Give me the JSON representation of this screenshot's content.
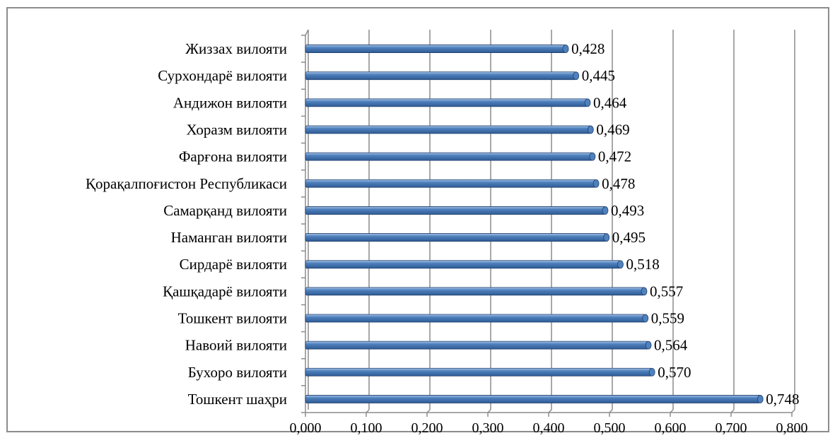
{
  "chart_data": {
    "type": "bar",
    "orientation": "horizontal",
    "categories": [
      "Жиззах вилояти",
      "Сурхондарё вилояти",
      "Андижон вилояти",
      "Хоразм вилояти",
      "Фарғона вилояти",
      "Қорақалпоғистон Республикаси",
      "Самарқанд вилояти",
      "Наманган вилояти",
      "Сирдарё вилояти",
      "Қашқадарё вилояти",
      "Тошкент вилояти",
      "Навоий вилояти",
      "Бухоро вилояти",
      "Тошкент шаҳри"
    ],
    "values": [
      0.428,
      0.445,
      0.464,
      0.469,
      0.472,
      0.478,
      0.493,
      0.495,
      0.518,
      0.557,
      0.559,
      0.564,
      0.57,
      0.748
    ],
    "value_labels": [
      "0,428",
      "0,445",
      "0,464",
      "0,469",
      "0,472",
      "0,478",
      "0,493",
      "0,495",
      "0,518",
      "0,557",
      "0,559",
      "0,564",
      "0,570",
      "0,748"
    ],
    "x_ticks": [
      "0,000",
      "0,100",
      "0,200",
      "0,300",
      "0,400",
      "0,500",
      "0,600",
      "0,700",
      "0,800"
    ],
    "xlim": [
      0,
      0.8
    ],
    "title": "",
    "xlabel": "",
    "ylabel": "",
    "grid": "vertical",
    "legend": "none",
    "bar_style": "3d-cylinder",
    "colors": {
      "bar": "#4f81bd",
      "bar_light": "#a9c4e8",
      "bar_dark": "#2f5b95",
      "bar_edge": "#1f3f6e",
      "gridline": "#8c8c8c",
      "axis": "#8c8c8c",
      "frame": "#8c8c8c"
    }
  }
}
